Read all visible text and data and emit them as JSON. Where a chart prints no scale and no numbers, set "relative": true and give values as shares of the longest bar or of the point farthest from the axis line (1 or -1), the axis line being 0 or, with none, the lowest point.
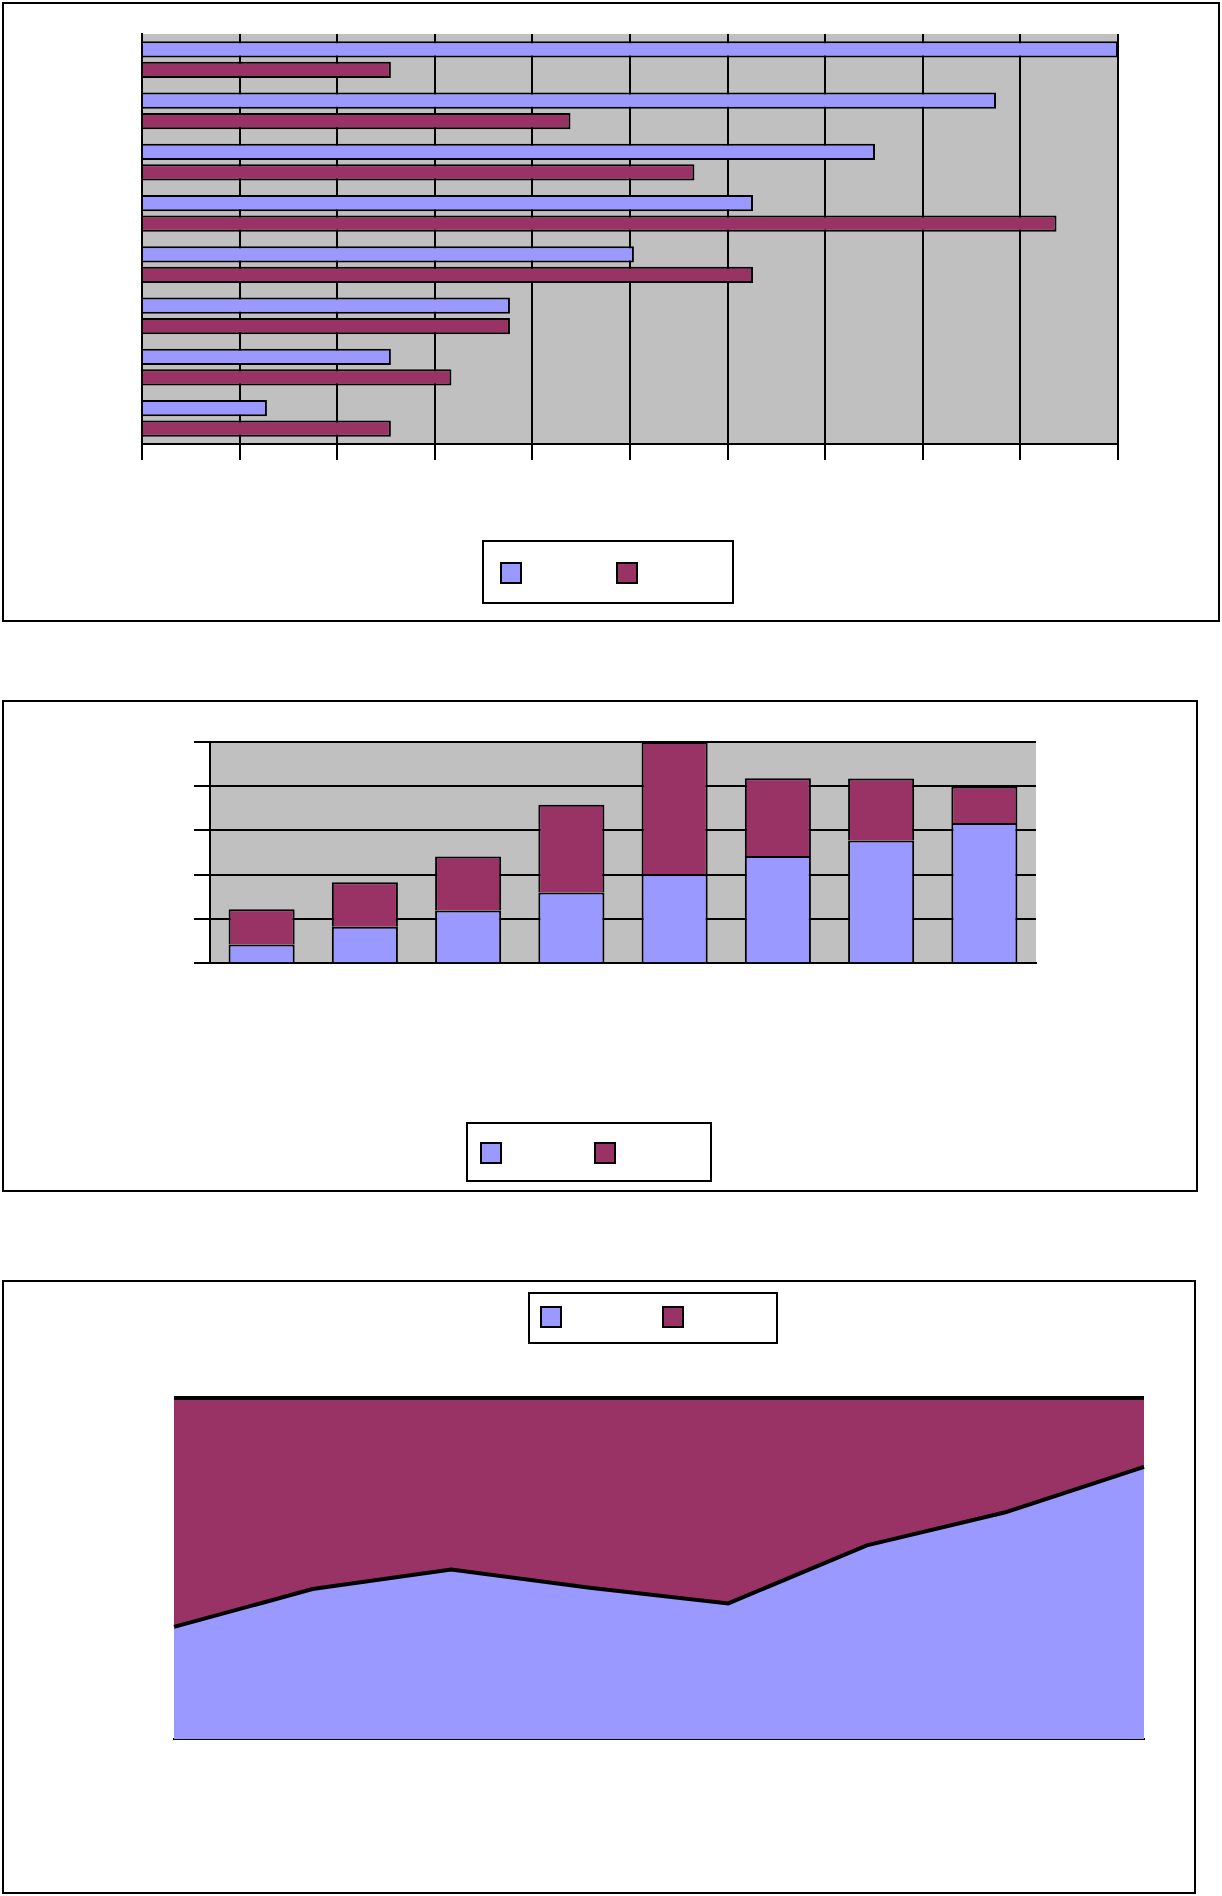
{
  "chart_data": [
    {
      "type": "bar",
      "orientation": "horizontal",
      "relative": true,
      "categories": [
        null,
        null,
        null,
        null,
        null,
        null,
        null,
        null
      ],
      "series": [
        {
          "color": "#9999ff",
          "values": [
            1,
            0.875,
            0.751,
            0.626,
            0.504,
            0.377,
            0.255,
            0.128
          ]
        },
        {
          "color": "#993366",
          "values": [
            0.255,
            0.439,
            0.566,
            0.937,
            0.626,
            0.377,
            0.317,
            0.255
          ]
        }
      ],
      "grid": "x"
    },
    {
      "type": "bar",
      "stacked": true,
      "relative": true,
      "categories": [
        null,
        null,
        null,
        null,
        null,
        null,
        null,
        null
      ],
      "series": [
        {
          "color": "#9999ff",
          "values": [
            0.085,
            0.165,
            0.238,
            0.32,
            0.402,
            0.485,
            0.555,
            0.634
          ]
        },
        {
          "color": "#993366",
          "values": [
            0.159,
            0.201,
            0.244,
            0.396,
            0.598,
            0.351,
            0.28,
            0.165
          ]
        }
      ],
      "grid": "y"
    },
    {
      "type": "area",
      "stacked": true,
      "relative": true,
      "categories": [
        null,
        null,
        null,
        null,
        null,
        null,
        null,
        null
      ],
      "series": [
        {
          "color": "#9999ff",
          "values": [
            0.329,
            0.44,
            0.497,
            0.444,
            0.398,
            0.568,
            0.665,
            0.798
          ]
        },
        {
          "color": "#993366",
          "values": [
            0.671,
            0.56,
            0.503,
            0.556,
            0.602,
            0.432,
            0.335,
            0.202
          ]
        }
      ]
    }
  ]
}
